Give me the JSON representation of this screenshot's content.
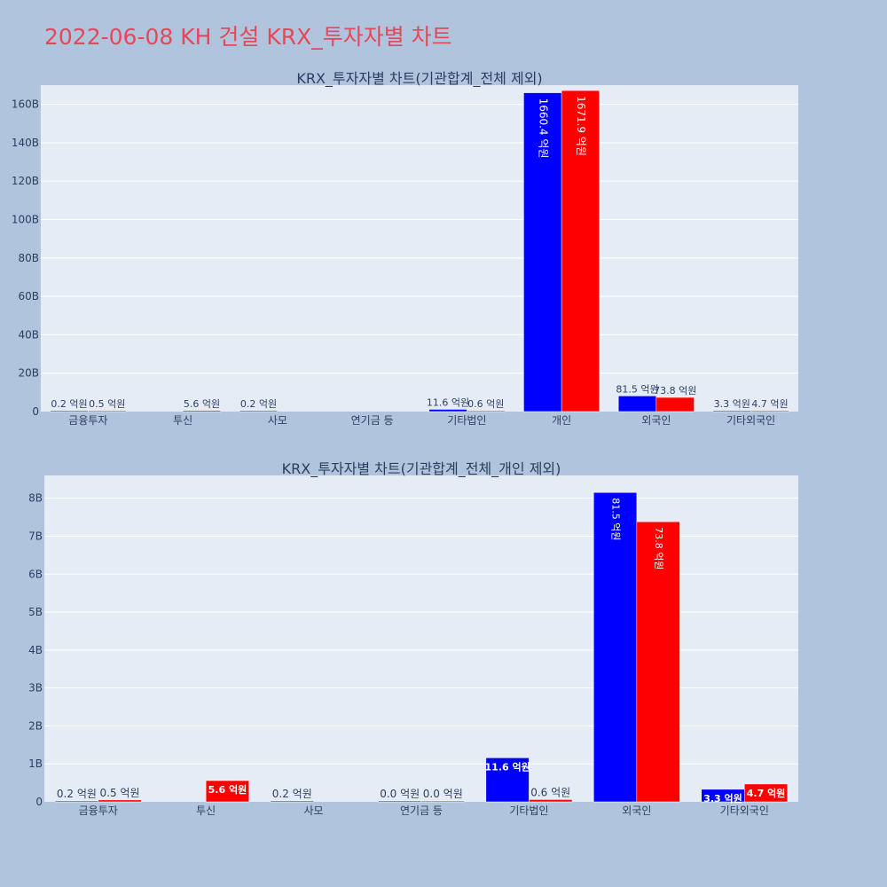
{
  "title": "2022-06-08 KH 건설 KRX_투자자별 차트",
  "colors": {
    "buy": "#0000ff",
    "sell": "#ff0000",
    "title": "#e8475a"
  },
  "chart_data": [
    {
      "type": "bar",
      "title": "KRX_투자자별 차트(기관합계_전체 제외)",
      "categories": [
        "금융투자",
        "투신",
        "사모",
        "연기금 등",
        "기타법인",
        "개인",
        "외국인",
        "기타외국인"
      ],
      "ylim": [
        0,
        170
      ],
      "yticks": [
        0,
        20,
        40,
        60,
        80,
        100,
        120,
        140,
        160
      ],
      "ytick_labels": [
        "0",
        "20B",
        "40B",
        "60B",
        "80B",
        "100B",
        "120B",
        "140B",
        "160B"
      ],
      "series": [
        {
          "color": "#0000ff",
          "values": [
            0.02,
            null,
            0.02,
            null,
            1.16,
            166.04,
            8.15,
            0.33
          ],
          "labels": [
            "0.2 억원",
            null,
            "0.2 억원",
            null,
            "11.6 억원",
            "1660.4 억원",
            "81.5 억원",
            "3.3 억원"
          ]
        },
        {
          "color": "#ff0000",
          "values": [
            0.05,
            0.56,
            null,
            null,
            0.06,
            167.19,
            7.38,
            0.47
          ],
          "labels": [
            "0.5 억원",
            "5.6 억원",
            null,
            null,
            "0.6 억원",
            "1671.9 억원",
            "73.8 억원",
            "4.7 억원"
          ]
        }
      ]
    },
    {
      "type": "bar",
      "title": "KRX_투자자별 차트(기관합계_전체_개인 제외)",
      "categories": [
        "금융투자",
        "투신",
        "사모",
        "연기금 등",
        "기타법인",
        "외국인",
        "기타외국인"
      ],
      "ylim": [
        0,
        8.6
      ],
      "yticks": [
        0,
        1,
        2,
        3,
        4,
        5,
        6,
        7,
        8
      ],
      "ytick_labels": [
        "0",
        "1B",
        "2B",
        "3B",
        "4B",
        "5B",
        "6B",
        "7B",
        "8B"
      ],
      "series": [
        {
          "color": "#0000ff",
          "values": [
            0.02,
            null,
            0.02,
            0.0,
            1.16,
            8.15,
            0.33
          ],
          "labels": [
            "0.2 억원",
            null,
            "0.2 억원",
            "0.0 억원",
            "11.6 억원",
            "81.5 억원",
            "3.3 억원"
          ]
        },
        {
          "color": "#ff0000",
          "values": [
            0.05,
            0.56,
            null,
            0.0,
            0.06,
            7.38,
            0.47
          ],
          "labels": [
            "0.5 억원",
            "5.6 억원",
            null,
            "0.0 억원",
            "0.6 억원",
            "73.8 억원",
            "4.7 억원"
          ]
        }
      ]
    }
  ]
}
